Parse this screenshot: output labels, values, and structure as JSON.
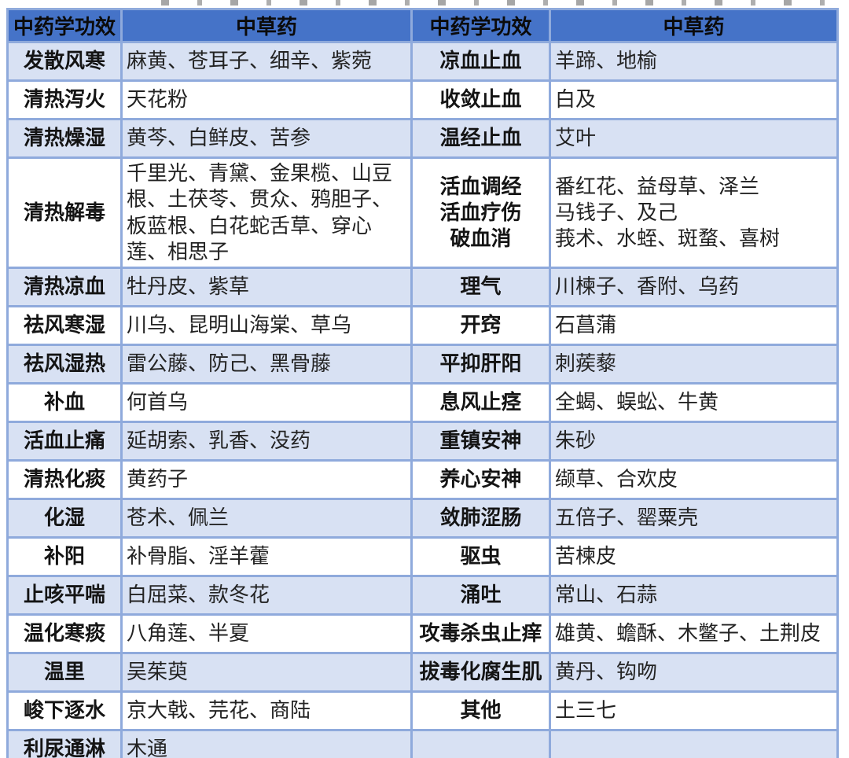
{
  "colors": {
    "header_bg": "#4573C8",
    "band_bg": "#D8E1F3",
    "border": "#8FAADC",
    "label_text": "#141414",
    "herb_text": "#232323"
  },
  "table": {
    "headers": [
      "中药学功效",
      "中草药",
      "中药学功效",
      "中草药"
    ],
    "rows": [
      [
        "发散风寒",
        "麻黄、苍耳子、细辛、紫菀",
        "凉血止血",
        "羊蹄、地榆"
      ],
      [
        "清热泻火",
        "天花粉",
        "收敛止血",
        "白及"
      ],
      [
        "清热燥湿",
        "黄芩、白鲜皮、苦参",
        "温经止血",
        "艾叶"
      ],
      [
        "清热解毒",
        "千里光、青黛、金果榄、山豆根、土茯苓、贯众、鸦胆子、板蓝根、白花蛇舌草、穿心莲、相思子",
        "活血调经\n活血疗伤\n破血消",
        "番红花、益母草、泽兰\n马钱子、及己\n莪术、水蛭、斑蝥、喜树"
      ],
      [
        "清热凉血",
        "牡丹皮、紫草",
        "理气",
        "川楝子、香附、乌药"
      ],
      [
        "祛风寒湿",
        "川乌、昆明山海棠、草乌",
        "开窍",
        "石菖蒲"
      ],
      [
        "祛风湿热",
        "雷公藤、防己、黑骨藤",
        "平抑肝阳",
        "刺蒺藜"
      ],
      [
        "补血",
        "何首乌",
        "息风止痉",
        "全蝎、蜈蚣、牛黄"
      ],
      [
        "活血止痛",
        "延胡索、乳香、没药",
        "重镇安神",
        "朱砂"
      ],
      [
        "清热化痰",
        "黄药子",
        "养心安神",
        "缬草、合欢皮"
      ],
      [
        "化湿",
        "苍术、佩兰",
        "敛肺涩肠",
        "五倍子、罂粟壳"
      ],
      [
        "补阳",
        "补骨脂、淫羊藿",
        "驱虫",
        "苦楝皮"
      ],
      [
        "止咳平喘",
        "白屈菜、款冬花",
        "涌吐",
        "常山、石蒜"
      ],
      [
        "温化寒痰",
        "八角莲、半夏",
        "攻毒杀虫止痒",
        "雄黄、蟾酥、木鳖子、土荆皮"
      ],
      [
        "温里",
        "吴茱萸",
        "拔毒化腐生肌",
        "黄丹、钩吻"
      ],
      [
        "峻下逐水",
        "京大戟、芫花、商陆",
        "其他",
        "土三七"
      ],
      [
        "利尿通淋",
        "木通",
        "",
        ""
      ]
    ]
  }
}
